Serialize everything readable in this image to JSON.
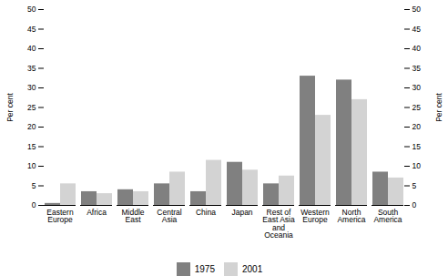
{
  "chart_data": {
    "type": "bar",
    "categories": [
      "Eastern\nEurope",
      "Africa",
      "Middle\nEast",
      "Central\nAsia",
      "China",
      "Japan",
      "Rest of\nEast Asia\nand\nOceania",
      "Western\nEurope",
      "North\nAmerica",
      "South\nAmerica"
    ],
    "series": [
      {
        "name": "1975",
        "color": "#808080",
        "values": [
          0.5,
          3.5,
          4.0,
          5.5,
          3.5,
          11.0,
          5.5,
          33.0,
          32.0,
          8.5
        ]
      },
      {
        "name": "2001",
        "color": "#d3d3d3",
        "values": [
          5.5,
          3.0,
          3.5,
          8.5,
          11.5,
          9.0,
          7.5,
          23.0,
          27.0,
          7.0
        ]
      }
    ],
    "ylim": [
      0,
      50
    ],
    "yticks": [
      0,
      5,
      10,
      15,
      20,
      25,
      30,
      35,
      40,
      45,
      50
    ],
    "ylabel": "Per cent",
    "legend": "bottom",
    "grid": false
  }
}
